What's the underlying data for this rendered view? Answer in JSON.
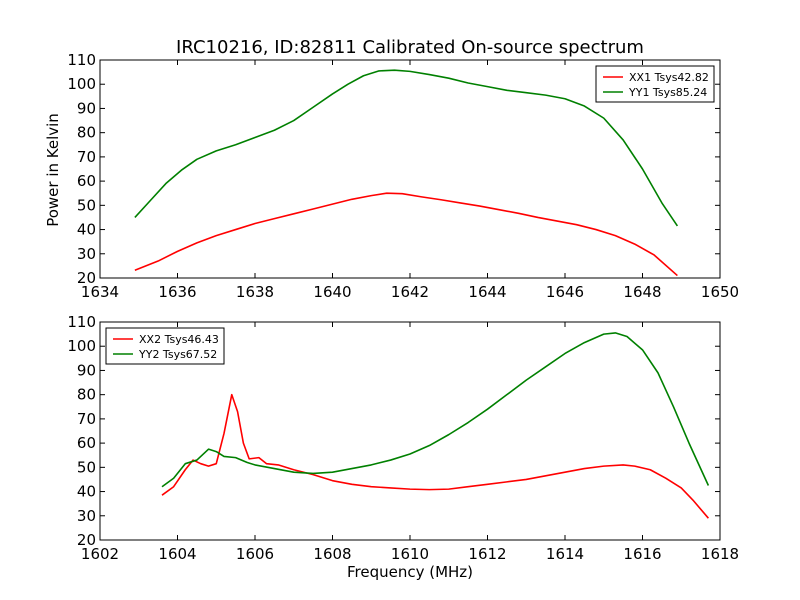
{
  "chart_data": [
    {
      "type": "line",
      "title": "IRC10216, ID:82811 Calibrated On-source spectrum",
      "xlabel": "",
      "ylabel": "Power in Kelvin",
      "xlim": [
        1634,
        1650
      ],
      "ylim": [
        20,
        110
      ],
      "xticks": [
        "1634",
        "1636",
        "1638",
        "1640",
        "1642",
        "1644",
        "1646",
        "1648",
        "1650"
      ],
      "yticks": [
        "20",
        "30",
        "40",
        "50",
        "60",
        "70",
        "80",
        "90",
        "100",
        "110"
      ],
      "legend_position": "top-right",
      "series": [
        {
          "name": "XX1 Tsys42.82",
          "color": "#ff0000",
          "points": [
            [
              1634.9,
              23.2
            ],
            [
              1635.5,
              27.0
            ],
            [
              1636.0,
              31.0
            ],
            [
              1636.5,
              34.5
            ],
            [
              1637.0,
              37.5
            ],
            [
              1637.5,
              40.0
            ],
            [
              1638.0,
              42.5
            ],
            [
              1638.5,
              44.5
            ],
            [
              1639.0,
              46.5
            ],
            [
              1639.5,
              48.5
            ],
            [
              1640.0,
              50.5
            ],
            [
              1640.5,
              52.5
            ],
            [
              1641.0,
              54.0
            ],
            [
              1641.4,
              55.0
            ],
            [
              1641.8,
              54.8
            ],
            [
              1642.3,
              53.5
            ],
            [
              1642.8,
              52.3
            ],
            [
              1643.3,
              51.0
            ],
            [
              1643.8,
              49.7
            ],
            [
              1644.3,
              48.2
            ],
            [
              1644.8,
              46.7
            ],
            [
              1645.3,
              45.0
            ],
            [
              1645.8,
              43.5
            ],
            [
              1646.3,
              42.0
            ],
            [
              1646.8,
              40.0
            ],
            [
              1647.3,
              37.5
            ],
            [
              1647.8,
              34.0
            ],
            [
              1648.3,
              29.5
            ],
            [
              1648.9,
              21.0
            ]
          ]
        },
        {
          "name": "YY1 Tsys85.24",
          "color": "#008000",
          "points": [
            [
              1634.9,
              45.0
            ],
            [
              1635.3,
              52.0
            ],
            [
              1635.7,
              59.0
            ],
            [
              1636.1,
              64.5
            ],
            [
              1636.5,
              69.0
            ],
            [
              1637.0,
              72.5
            ],
            [
              1637.5,
              75.0
            ],
            [
              1638.0,
              78.0
            ],
            [
              1638.5,
              81.0
            ],
            [
              1639.0,
              85.0
            ],
            [
              1639.5,
              90.5
            ],
            [
              1640.0,
              96.0
            ],
            [
              1640.4,
              100.0
            ],
            [
              1640.8,
              103.5
            ],
            [
              1641.2,
              105.5
            ],
            [
              1641.6,
              105.8
            ],
            [
              1642.0,
              105.3
            ],
            [
              1642.5,
              104.0
            ],
            [
              1643.0,
              102.5
            ],
            [
              1643.5,
              100.5
            ],
            [
              1644.0,
              99.0
            ],
            [
              1644.5,
              97.5
            ],
            [
              1645.0,
              96.5
            ],
            [
              1645.5,
              95.5
            ],
            [
              1646.0,
              94.0
            ],
            [
              1646.5,
              91.0
            ],
            [
              1647.0,
              86.0
            ],
            [
              1647.5,
              77.0
            ],
            [
              1648.0,
              65.0
            ],
            [
              1648.5,
              51.0
            ],
            [
              1648.9,
              41.5
            ]
          ]
        }
      ]
    },
    {
      "type": "line",
      "title": "",
      "xlabel": "Frequency (MHz)",
      "ylabel": "",
      "xlim": [
        1602,
        1618
      ],
      "ylim": [
        20,
        110
      ],
      "xticks": [
        "1602",
        "1604",
        "1606",
        "1608",
        "1610",
        "1612",
        "1614",
        "1616",
        "1618"
      ],
      "yticks": [
        "20",
        "30",
        "40",
        "50",
        "60",
        "70",
        "80",
        "90",
        "100",
        "110"
      ],
      "legend_position": "top-left",
      "series": [
        {
          "name": "XX2 Tsys46.43",
          "color": "#ff0000",
          "points": [
            [
              1603.6,
              38.5
            ],
            [
              1603.9,
              42.0
            ],
            [
              1604.2,
              49.0
            ],
            [
              1604.4,
              53.0
            ],
            [
              1604.6,
              51.5
            ],
            [
              1604.8,
              50.5
            ],
            [
              1605.0,
              51.5
            ],
            [
              1605.2,
              64.0
            ],
            [
              1605.4,
              80.0
            ],
            [
              1605.55,
              73.0
            ],
            [
              1605.7,
              60.0
            ],
            [
              1605.85,
              53.5
            ],
            [
              1606.1,
              54.0
            ],
            [
              1606.3,
              51.5
            ],
            [
              1606.6,
              51.0
            ],
            [
              1607.0,
              49.0
            ],
            [
              1607.5,
              47.0
            ],
            [
              1608.0,
              44.5
            ],
            [
              1608.5,
              43.0
            ],
            [
              1609.0,
              42.0
            ],
            [
              1609.5,
              41.5
            ],
            [
              1610.0,
              41.0
            ],
            [
              1610.5,
              40.8
            ],
            [
              1611.0,
              41.0
            ],
            [
              1611.5,
              42.0
            ],
            [
              1612.0,
              43.0
            ],
            [
              1612.5,
              44.0
            ],
            [
              1613.0,
              45.0
            ],
            [
              1613.5,
              46.5
            ],
            [
              1614.0,
              48.0
            ],
            [
              1614.5,
              49.5
            ],
            [
              1615.0,
              50.5
            ],
            [
              1615.5,
              51.0
            ],
            [
              1615.8,
              50.5
            ],
            [
              1616.2,
              49.0
            ],
            [
              1616.6,
              45.5
            ],
            [
              1617.0,
              41.5
            ],
            [
              1617.3,
              36.5
            ],
            [
              1617.7,
              29.0
            ]
          ]
        },
        {
          "name": "YY2 Tsys67.52",
          "color": "#008000",
          "points": [
            [
              1603.6,
              42.0
            ],
            [
              1603.9,
              45.5
            ],
            [
              1604.2,
              51.5
            ],
            [
              1604.5,
              53.0
            ],
            [
              1604.8,
              57.5
            ],
            [
              1605.0,
              56.5
            ],
            [
              1605.2,
              54.5
            ],
            [
              1605.5,
              54.0
            ],
            [
              1605.8,
              52.0
            ],
            [
              1606.0,
              51.0
            ],
            [
              1606.5,
              49.5
            ],
            [
              1607.0,
              48.0
            ],
            [
              1607.5,
              47.5
            ],
            [
              1608.0,
              48.0
            ],
            [
              1608.5,
              49.5
            ],
            [
              1609.0,
              51.0
            ],
            [
              1609.5,
              53.0
            ],
            [
              1610.0,
              55.5
            ],
            [
              1610.5,
              59.0
            ],
            [
              1611.0,
              63.5
            ],
            [
              1611.5,
              68.5
            ],
            [
              1612.0,
              74.0
            ],
            [
              1612.5,
              80.0
            ],
            [
              1613.0,
              86.0
            ],
            [
              1613.5,
              91.5
            ],
            [
              1614.0,
              97.0
            ],
            [
              1614.5,
              101.5
            ],
            [
              1615.0,
              105.0
            ],
            [
              1615.3,
              105.5
            ],
            [
              1615.6,
              104.0
            ],
            [
              1616.0,
              98.5
            ],
            [
              1616.4,
              89.0
            ],
            [
              1616.8,
              75.0
            ],
            [
              1617.2,
              60.0
            ],
            [
              1617.7,
              42.5
            ]
          ]
        }
      ]
    }
  ]
}
